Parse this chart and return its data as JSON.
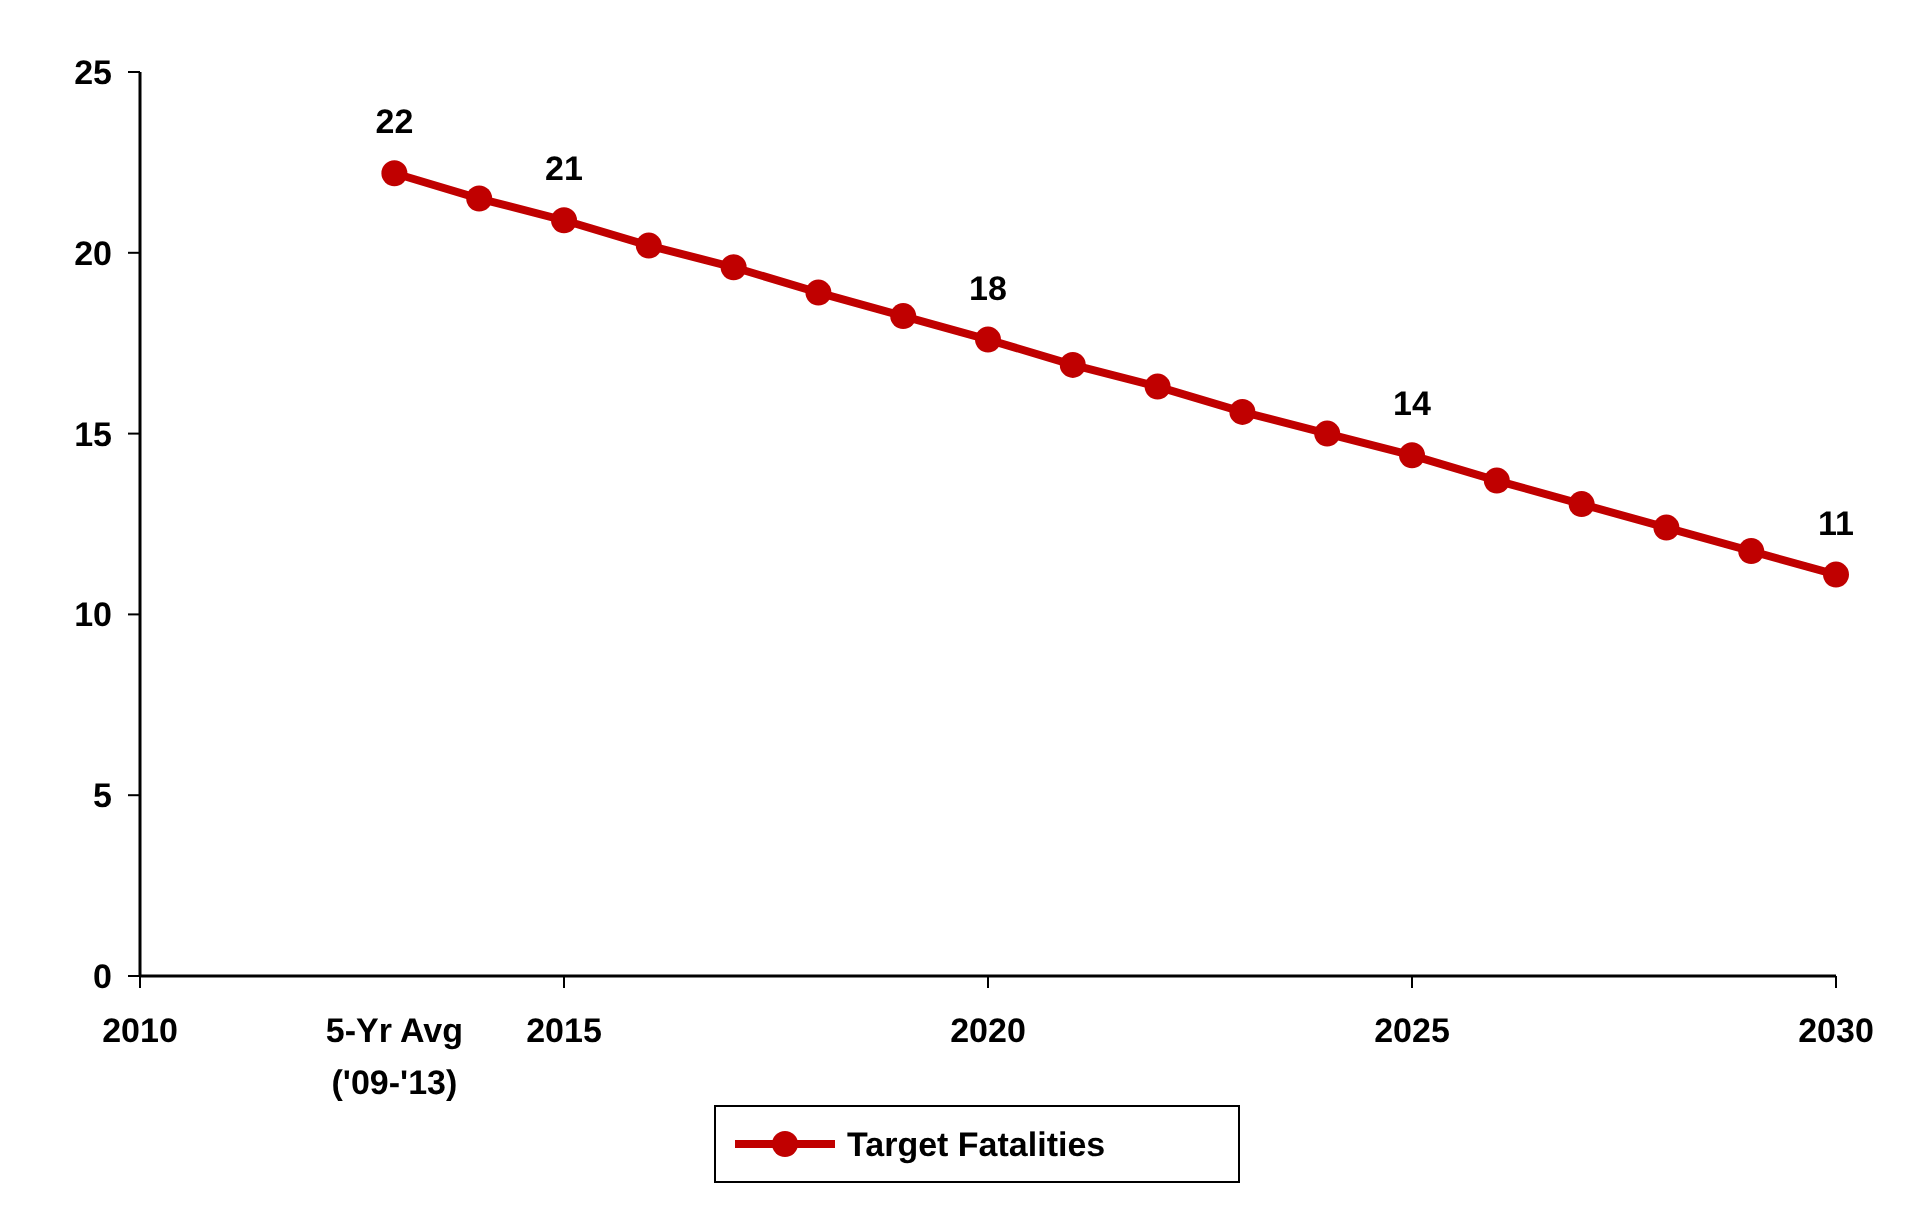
{
  "chart_data": {
    "type": "line",
    "x": [
      2013,
      2014,
      2015,
      2016,
      2017,
      2018,
      2019,
      2020,
      2021,
      2022,
      2023,
      2024,
      2025,
      2026,
      2027,
      2028,
      2029,
      2030
    ],
    "series": [
      {
        "name": "Target Fatalities",
        "color": "#c00000",
        "values": [
          22.2,
          21.5,
          20.9,
          20.2,
          19.6,
          18.9,
          18.25,
          17.6,
          16.9,
          16.3,
          15.6,
          15.0,
          14.4,
          13.7,
          13.05,
          12.4,
          11.75,
          11.1
        ],
        "value_labels": [
          "22",
          null,
          "21",
          null,
          null,
          null,
          null,
          "18",
          null,
          null,
          null,
          null,
          "14",
          null,
          null,
          null,
          null,
          "11"
        ]
      }
    ],
    "xlim": [
      2010,
      2030
    ],
    "xticks": [
      2010,
      {
        "value": 2013,
        "label": "5-Yr Avg ('09-'13)"
      },
      2015,
      2020,
      2025,
      2030
    ],
    "ylim": [
      0,
      25
    ],
    "yticks": [
      0,
      5,
      10,
      15,
      20,
      25
    ],
    "grid": false,
    "legend": "bottom",
    "marker": "circle",
    "line_style": "solid"
  }
}
